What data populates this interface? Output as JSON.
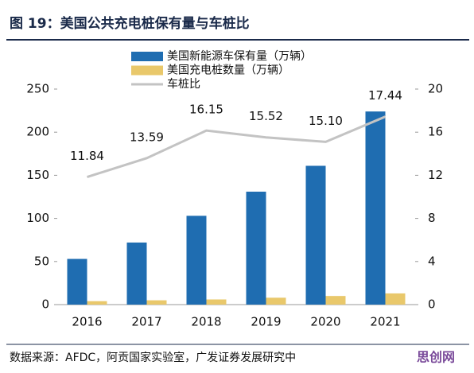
{
  "chart_data": {
    "type": "bar",
    "title": "图 19：美国公共充电桩保有量与车桩比",
    "categories": [
      "2016",
      "2017",
      "2018",
      "2019",
      "2020",
      "2021"
    ],
    "series": [
      {
        "name": "美国新能源车保有量（万辆）",
        "color": "#1f6db1",
        "values": [
          53,
          72,
          103,
          131,
          161,
          224
        ]
      },
      {
        "name": "美国充电桩数量（万辆）",
        "color": "#e9c86b",
        "values": [
          4,
          5,
          6,
          8,
          10,
          13
        ]
      },
      {
        "name": "车桩比",
        "color": "#c3c3c3",
        "type": "line",
        "axis": "y2",
        "values": [
          11.84,
          13.59,
          16.15,
          15.52,
          15.1,
          17.44
        ],
        "value_labels": [
          "11.84",
          "13.59",
          "16.15",
          "15.52",
          "15.10",
          "17.44"
        ]
      }
    ],
    "ylim": [
      0,
      250
    ],
    "yticks": [
      0,
      50,
      100,
      150,
      200,
      250
    ],
    "y2lim": [
      0,
      20
    ],
    "y2ticks": [
      0,
      4,
      8,
      12,
      16,
      20
    ],
    "source": "数据来源：AFDC，阿贡国家实验室，广发证券发展研究中",
    "watermark": "思创网"
  }
}
